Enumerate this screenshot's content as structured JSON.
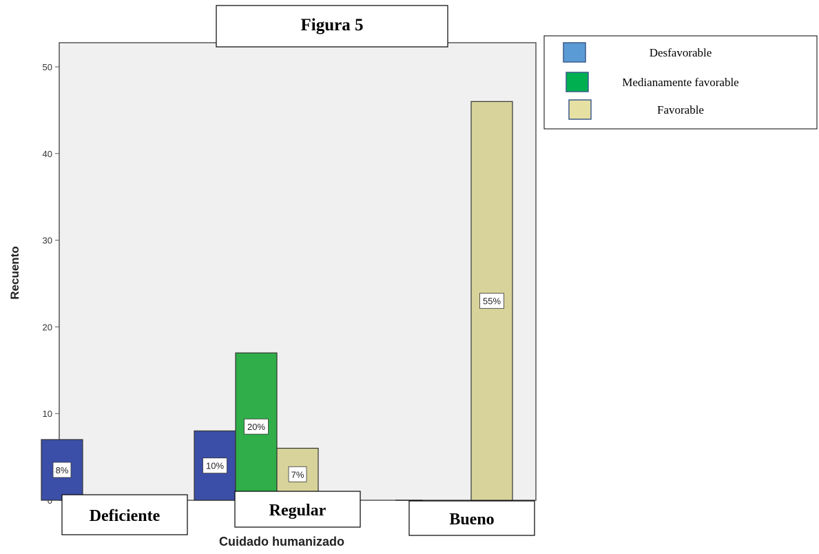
{
  "chart_data": {
    "type": "bar",
    "title": "Figura 5",
    "xlabel": "Cuidado humanizado",
    "ylabel": "Recuento",
    "ylim": [
      0,
      52
    ],
    "yticks": [
      0,
      10,
      20,
      30,
      40,
      50
    ],
    "grid": false,
    "legend_position": "top-right",
    "categories": [
      "Deficiente",
      "Regular",
      "Bueno"
    ],
    "series": [
      {
        "name": "Desfavorable",
        "color": "#3b4fa8",
        "legend_color": "#5b9bd5",
        "values": [
          7,
          8,
          0
        ],
        "labels": [
          "8%",
          "10%",
          ""
        ]
      },
      {
        "name": "Medianamente favorable",
        "color": "#2fae49",
        "legend_color": "#00b050",
        "values": [
          0,
          17,
          0
        ],
        "labels": [
          "",
          "20%",
          ""
        ]
      },
      {
        "name": "Favorable",
        "color": "#d8d39a",
        "legend_color": "#e6e0a3",
        "values": [
          0,
          6,
          46
        ],
        "labels": [
          "",
          "7%",
          "55%"
        ]
      }
    ]
  }
}
